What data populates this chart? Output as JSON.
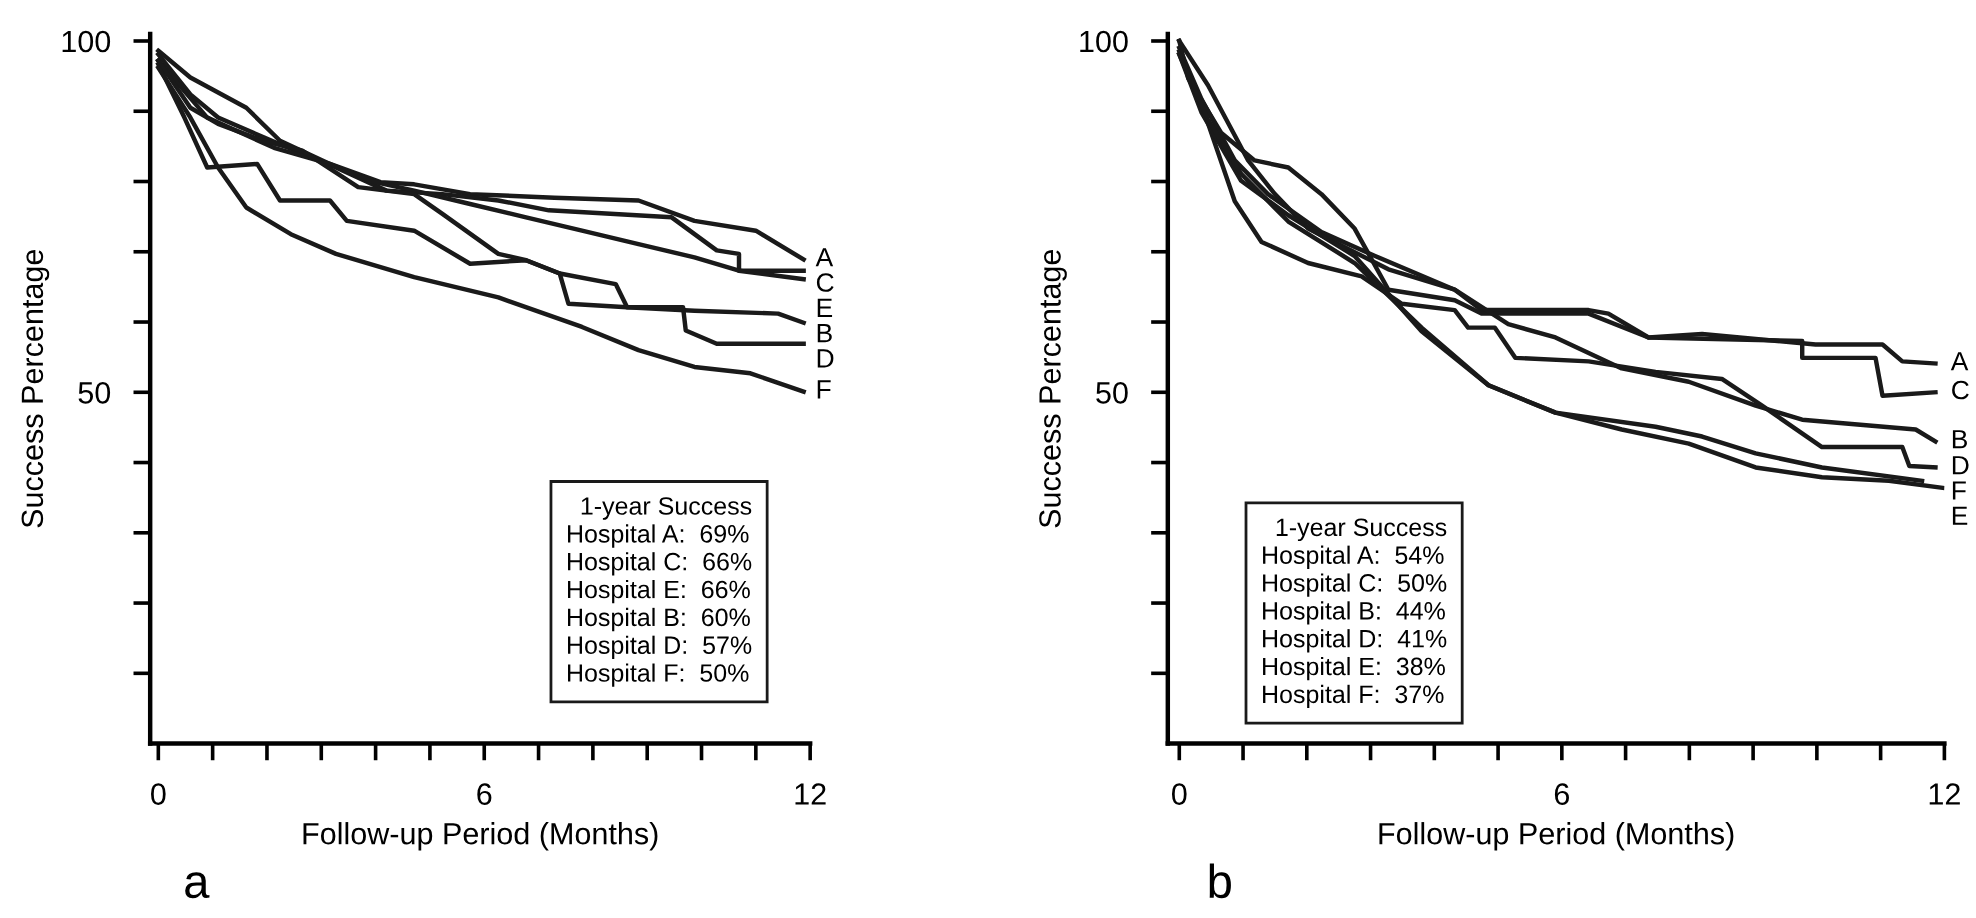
{
  "chart_data": [
    {
      "type": "line",
      "title": "a",
      "xlabel": "Follow-up Period (Months)",
      "ylabel": "Success Percentage",
      "xlim": [
        -0.15,
        12
      ],
      "ylim": [
        0,
        101
      ],
      "xticks": [
        0,
        {
          "value": 1,
          "label": null
        },
        {
          "value": 2,
          "label": null
        },
        {
          "value": 3,
          "label": null
        },
        {
          "value": 4,
          "label": null
        },
        {
          "value": 5,
          "label": null
        },
        6,
        {
          "value": 7,
          "label": null
        },
        {
          "value": 8,
          "label": null
        },
        {
          "value": 9,
          "label": null
        },
        {
          "value": 10,
          "label": null
        },
        {
          "value": 11,
          "label": null
        },
        12
      ],
      "yticks": [
        {
          "value": 10,
          "label": null
        },
        {
          "value": 20,
          "label": null
        },
        {
          "value": 30,
          "label": null
        },
        {
          "value": 40,
          "label": null
        },
        50,
        {
          "value": 60,
          "label": null
        },
        {
          "value": 70,
          "label": null
        },
        {
          "value": 80,
          "label": null
        },
        {
          "value": 90,
          "label": null
        },
        100
      ],
      "grid": false,
      "legend": false,
      "marker": "none",
      "line_style": "solid",
      "annotations": [
        "1-year Success",
        "Hospital A:  69%",
        "Hospital C:  66%",
        "Hospital E:  66%",
        "Hospital B:  60%",
        "Hospital D:  57%",
        "Hospital F:  50%"
      ],
      "series": [
        {
          "name": "A",
          "color": "#1a1a1a",
          "x": [
            0,
            0.59,
            1.62,
            2.24,
            3.16,
            4.09,
            4.71,
            5.74,
            7.29,
            8.84,
            9.87,
            11.0,
            11.88
          ],
          "values": [
            98.6,
            94.8,
            90.5,
            85.8,
            82.5,
            79.9,
            79.6,
            78.2,
            77.7,
            77.3,
            74.4,
            73.0,
            68.9
          ]
        },
        {
          "name": "C",
          "color": "#1a1a1a",
          "x": [
            0,
            0.59,
            1.1,
            2.24,
            3.27,
            4.2,
            5.23,
            6.26,
            7.19,
            9.45,
            10.28,
            10.69,
            10.69,
            11.88
          ],
          "values": [
            98.1,
            92.4,
            89.1,
            85.3,
            82.0,
            78.7,
            78.2,
            77.3,
            75.9,
            74.9,
            70.2,
            69.7,
            67.3,
            67.3
          ]
        },
        {
          "name": "E",
          "color": "#1a1a1a",
          "x": [
            0,
            0.9,
            2.13,
            3.16,
            3.89,
            4.71,
            5.74,
            6.77,
            7.8,
            8.84,
            9.87,
            10.69,
            11.88
          ],
          "values": [
            97.2,
            89.1,
            84.8,
            82.5,
            80.1,
            78.7,
            76.8,
            74.9,
            73.0,
            71.1,
            69.2,
            67.3,
            66.1
          ]
        },
        {
          "name": "B",
          "color": "#1a1a1a",
          "x": [
            0,
            0.48,
            0.9,
            1.82,
            2.24,
            3.16,
            3.47,
            4.71,
            5.74,
            6.77,
            7.39,
            7.55,
            8.63,
            9.87,
            11.41,
            11.88
          ],
          "values": [
            96.7,
            89.1,
            82.0,
            82.5,
            77.3,
            77.3,
            74.4,
            73.0,
            68.3,
            68.8,
            66.9,
            62.6,
            62.1,
            61.6,
            61.2,
            59.9
          ]
        },
        {
          "name": "D",
          "color": "#1a1a1a",
          "x": [
            0,
            0.59,
            1.1,
            1.93,
            2.65,
            3.68,
            4.71,
            5.23,
            6.26,
            6.77,
            7.39,
            8.42,
            8.63,
            9.66,
            9.71,
            10.28,
            11.88
          ],
          "values": [
            97.2,
            90.5,
            88.2,
            85.8,
            84.4,
            79.2,
            78.2,
            75.4,
            69.7,
            68.8,
            66.9,
            65.4,
            62.1,
            62.1,
            58.8,
            56.9,
            56.9
          ]
        },
        {
          "name": "F",
          "color": "#1a1a1a",
          "x": [
            0,
            0.59,
            1.1,
            1.62,
            2.44,
            3.27,
            4.71,
            6.26,
            7.8,
            8.84,
            9.87,
            10.9,
            11.88
          ],
          "values": [
            96.2,
            89.1,
            82.0,
            76.3,
            72.5,
            69.7,
            66.4,
            63.5,
            59.3,
            56.0,
            53.6,
            52.7,
            50.1
          ]
        }
      ]
    },
    {
      "type": "line",
      "title": "b",
      "xlabel": "Follow-up Period (Months)",
      "ylabel": "Success Percentage",
      "xlim": [
        -0.18,
        12
      ],
      "ylim": [
        0,
        101
      ],
      "xticks": [
        0,
        {
          "value": 1,
          "label": null
        },
        {
          "value": 2,
          "label": null
        },
        {
          "value": 3,
          "label": null
        },
        {
          "value": 4,
          "label": null
        },
        {
          "value": 5,
          "label": null
        },
        6,
        {
          "value": 7,
          "label": null
        },
        {
          "value": 8,
          "label": null
        },
        {
          "value": 9,
          "label": null
        },
        {
          "value": 10,
          "label": null
        },
        {
          "value": 11,
          "label": null
        },
        12
      ],
      "yticks": [
        {
          "value": 10,
          "label": null
        },
        {
          "value": 20,
          "label": null
        },
        {
          "value": 30,
          "label": null
        },
        {
          "value": 40,
          "label": null
        },
        50,
        {
          "value": 60,
          "label": null
        },
        {
          "value": 70,
          "label": null
        },
        {
          "value": 80,
          "label": null
        },
        {
          "value": 90,
          "label": null
        },
        100
      ],
      "grid": false,
      "legend": false,
      "marker": "none",
      "line_style": "solid",
      "annotations": [
        "1-year Success",
        "Hospital A:  54%",
        "Hospital C:  50%",
        "Hospital B:  44%",
        "Hospital D:  41%",
        "Hospital E:  38%",
        "Hospital F:  37%"
      ],
      "series": [
        {
          "name": "A",
          "color": "#1a1a1a",
          "x": [
            0,
            0.45,
            1.08,
            1.5,
            2.02,
            2.65,
            3.28,
            4.32,
            4.74,
            6.42,
            6.73,
            7.36,
            8.2,
            9.98,
            11.03,
            11.34,
            11.86
          ],
          "values": [
            100,
            93.7,
            83.0,
            78.2,
            73.3,
            70.4,
            67.5,
            64.6,
            61.7,
            61.7,
            61.2,
            57.8,
            58.3,
            56.8,
            56.8,
            54.4,
            54.1
          ]
        },
        {
          "name": "C",
          "color": "#1a1a1a",
          "x": [
            0,
            0.14,
            0.66,
            1.18,
            1.71,
            2.23,
            2.75,
            3.28,
            4.32,
            4.74,
            6.42,
            7.36,
            9.77,
            9.77,
            10.92,
            11.03,
            11.86
          ],
          "values": [
            100,
            94.7,
            86.9,
            83.0,
            82.0,
            78.2,
            73.3,
            64.6,
            63.1,
            61.2,
            61.2,
            57.8,
            57.3,
            54.9,
            54.9,
            49.5,
            50.0
          ]
        },
        {
          "name": "B",
          "color": "#1a1a1a",
          "x": [
            0,
            0.35,
            0.87,
            1.39,
            2.23,
            3.07,
            4.32,
            5.16,
            5.9,
            6.94,
            7.99,
            9.04,
            9.77,
            11.55,
            11.86
          ],
          "values": [
            99.0,
            91.7,
            83.0,
            78.2,
            72.8,
            69.4,
            64.6,
            59.7,
            57.8,
            53.4,
            51.5,
            48.1,
            46.1,
            44.7,
            43.0
          ]
        },
        {
          "name": "D",
          "color": "#1a1a1a",
          "x": [
            0,
            0.45,
            0.87,
            1.29,
            2.02,
            2.86,
            3.49,
            4.32,
            4.53,
            4.95,
            5.27,
            6.42,
            7.47,
            8.51,
            9.14,
            10.08,
            11.34,
            11.45,
            11.86
          ],
          "values": [
            98.5,
            88.3,
            77.2,
            71.4,
            68.4,
            66.5,
            62.6,
            61.7,
            59.2,
            59.2,
            54.9,
            54.4,
            52.9,
            51.9,
            48.1,
            42.2,
            42.2,
            39.5,
            39.3
          ]
        },
        {
          "name": "E",
          "color": "#1a1a1a",
          "x": [
            0,
            0.35,
            0.97,
            1.71,
            2.75,
            3.8,
            4.85,
            5.9,
            6.94,
            7.99,
            9.04,
            10.08,
            11.13,
            11.97
          ],
          "values": [
            98.1,
            89.8,
            80.1,
            75.2,
            69.4,
            58.7,
            51.0,
            47.1,
            44.7,
            42.7,
            39.3,
            37.9,
            37.4,
            36.4
          ]
        },
        {
          "name": "F",
          "color": "#1a1a1a",
          "x": [
            0,
            0.45,
            0.97,
            1.71,
            2.75,
            3.8,
            4.85,
            5.9,
            7.47,
            8.2,
            9.04,
            10.08,
            11.65
          ],
          "values": [
            98.1,
            88.8,
            81.1,
            74.3,
            68.4,
            59.2,
            51.0,
            47.1,
            45.1,
            43.7,
            41.3,
            39.3,
            37.4
          ]
        }
      ]
    }
  ]
}
